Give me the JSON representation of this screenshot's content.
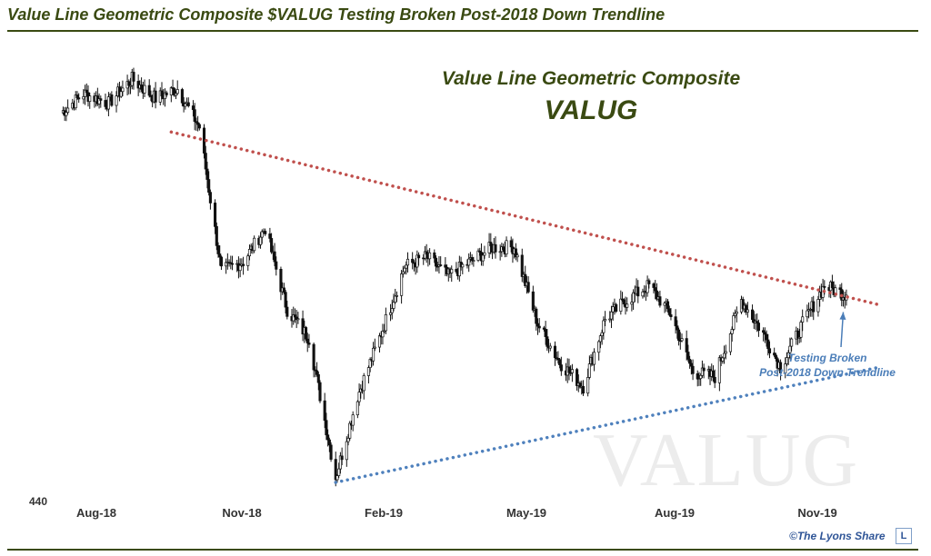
{
  "header": {
    "title": "Value Line Geometric Composite $VALUG Testing Broken Post-2018 Down Trendline"
  },
  "chart_data": {
    "type": "candlestick",
    "title": "Value Line Geometric Composite",
    "subtitle": "VALUG",
    "watermark": "VALUG",
    "y_tick_labels": [
      "440"
    ],
    "x_tick_labels": [
      "Aug-18",
      "Nov-18",
      "Feb-19",
      "May-19",
      "Aug-19",
      "Nov-19"
    ],
    "x": [
      "2018-07-02",
      "2018-07-16",
      "2018-08-01",
      "2018-08-16",
      "2018-08-31",
      "2018-09-14",
      "2018-09-28",
      "2018-10-12",
      "2018-10-26",
      "2018-11-09",
      "2018-11-23",
      "2018-12-07",
      "2018-12-24",
      "2019-01-07",
      "2019-01-22",
      "2019-02-06",
      "2019-02-20",
      "2019-03-06",
      "2019-03-20",
      "2019-04-03",
      "2019-04-17",
      "2019-05-02",
      "2019-05-16",
      "2019-05-31",
      "2019-06-14",
      "2019-06-28",
      "2019-07-12",
      "2019-07-26",
      "2019-08-09",
      "2019-08-23",
      "2019-09-09",
      "2019-09-23",
      "2019-10-04",
      "2019-10-18",
      "2019-11-01",
      "2019-11-15"
    ],
    "close": [
      517,
      521,
      519,
      524,
      520,
      522,
      514,
      484,
      486,
      493,
      476,
      470,
      441,
      458,
      471,
      485,
      487,
      483,
      486,
      489,
      489,
      473,
      465,
      460,
      474,
      478,
      481,
      475,
      463,
      462,
      478,
      471,
      464,
      473,
      481,
      479
    ],
    "series": [
      {
        "name": "",
        "kind": "down-trendline",
        "color": "#c0504d",
        "x": [
          "2018-09-10",
          "2019-12-06"
        ],
        "y": [
          513,
          477
        ]
      },
      {
        "name": "",
        "kind": "up-trendline",
        "color": "#4f81bd",
        "x": [
          "2018-12-24",
          "2019-12-06"
        ],
        "y": [
          440,
          464
        ]
      }
    ],
    "annotations": [
      {
        "text": [
          "Testing Broken",
          "Post-2018 Down Trendline"
        ],
        "color": "#4a7db8",
        "arrow_to": {
          "x": "2019-11-13",
          "y": 477
        }
      }
    ],
    "grid": false,
    "legend": "none"
  },
  "credit": {
    "text": "©The Lyons Share",
    "logo": "L"
  }
}
